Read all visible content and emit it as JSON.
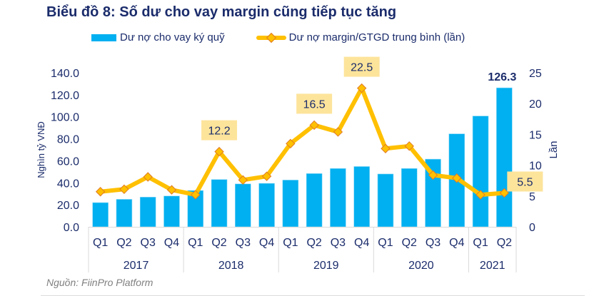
{
  "chart_data": {
    "type": "bar",
    "title": "Biểu đồ 8: Số dư cho vay margin cũng tiếp tục tăng",
    "categories": [
      "Q1",
      "Q2",
      "Q3",
      "Q4",
      "Q1",
      "Q2",
      "Q3",
      "Q4",
      "Q1",
      "Q2",
      "Q3",
      "Q4",
      "Q1",
      "Q2",
      "Q3",
      "Q4",
      "Q1",
      "Q2"
    ],
    "groups": [
      {
        "label": "2017",
        "count": 4
      },
      {
        "label": "2018",
        "count": 4
      },
      {
        "label": "2019",
        "count": 4
      },
      {
        "label": "2020",
        "count": 4
      },
      {
        "label": "2021",
        "count": 2
      }
    ],
    "series": [
      {
        "name": "Dư nợ cho vay ký quỹ",
        "type": "bar",
        "axis": "left",
        "color": "#00b0f0",
        "values": [
          22.0,
          25.0,
          27.0,
          28.0,
          33.0,
          43.0,
          39.0,
          39.5,
          42.5,
          48.4,
          53.0,
          54.8,
          48.0,
          53.0,
          61.5,
          84.5,
          100.7,
          126.3
        ],
        "labels": {
          "17": "126.3"
        }
      },
      {
        "name": "Dư nợ margin/GTGD trung bình (lần)",
        "type": "line",
        "axis": "right",
        "color": "#ffc000",
        "marker_edge": "#e07b24",
        "values": [
          5.7,
          6.1,
          8.1,
          6.0,
          5.2,
          12.2,
          7.6,
          8.2,
          13.5,
          16.5,
          15.4,
          22.5,
          12.7,
          13.1,
          8.4,
          7.9,
          5.2,
          5.5
        ],
        "labels": {
          "5": "12.2",
          "9": "16.5",
          "11": "22.5",
          "17": "5.5"
        }
      }
    ],
    "ylabel": "Nghìn tỷ VNĐ",
    "ylim": [
      0,
      140
    ],
    "yticks": [
      "0.0",
      "20.0",
      "40.0",
      "60.0",
      "80.0",
      "100.0",
      "120.0",
      "140.0"
    ],
    "y2label": "Lần",
    "y2lim": [
      0,
      25
    ],
    "y2ticks": [
      "0",
      "5",
      "10",
      "15",
      "20",
      "25"
    ],
    "grid": false,
    "legend": "top"
  },
  "legend": {
    "bar_label": "Dư nợ cho vay ký quỹ",
    "line_label": "Dư nợ margin/GTGD trung bình (lần)"
  },
  "source": "Nguồn: FiinPro Platform"
}
